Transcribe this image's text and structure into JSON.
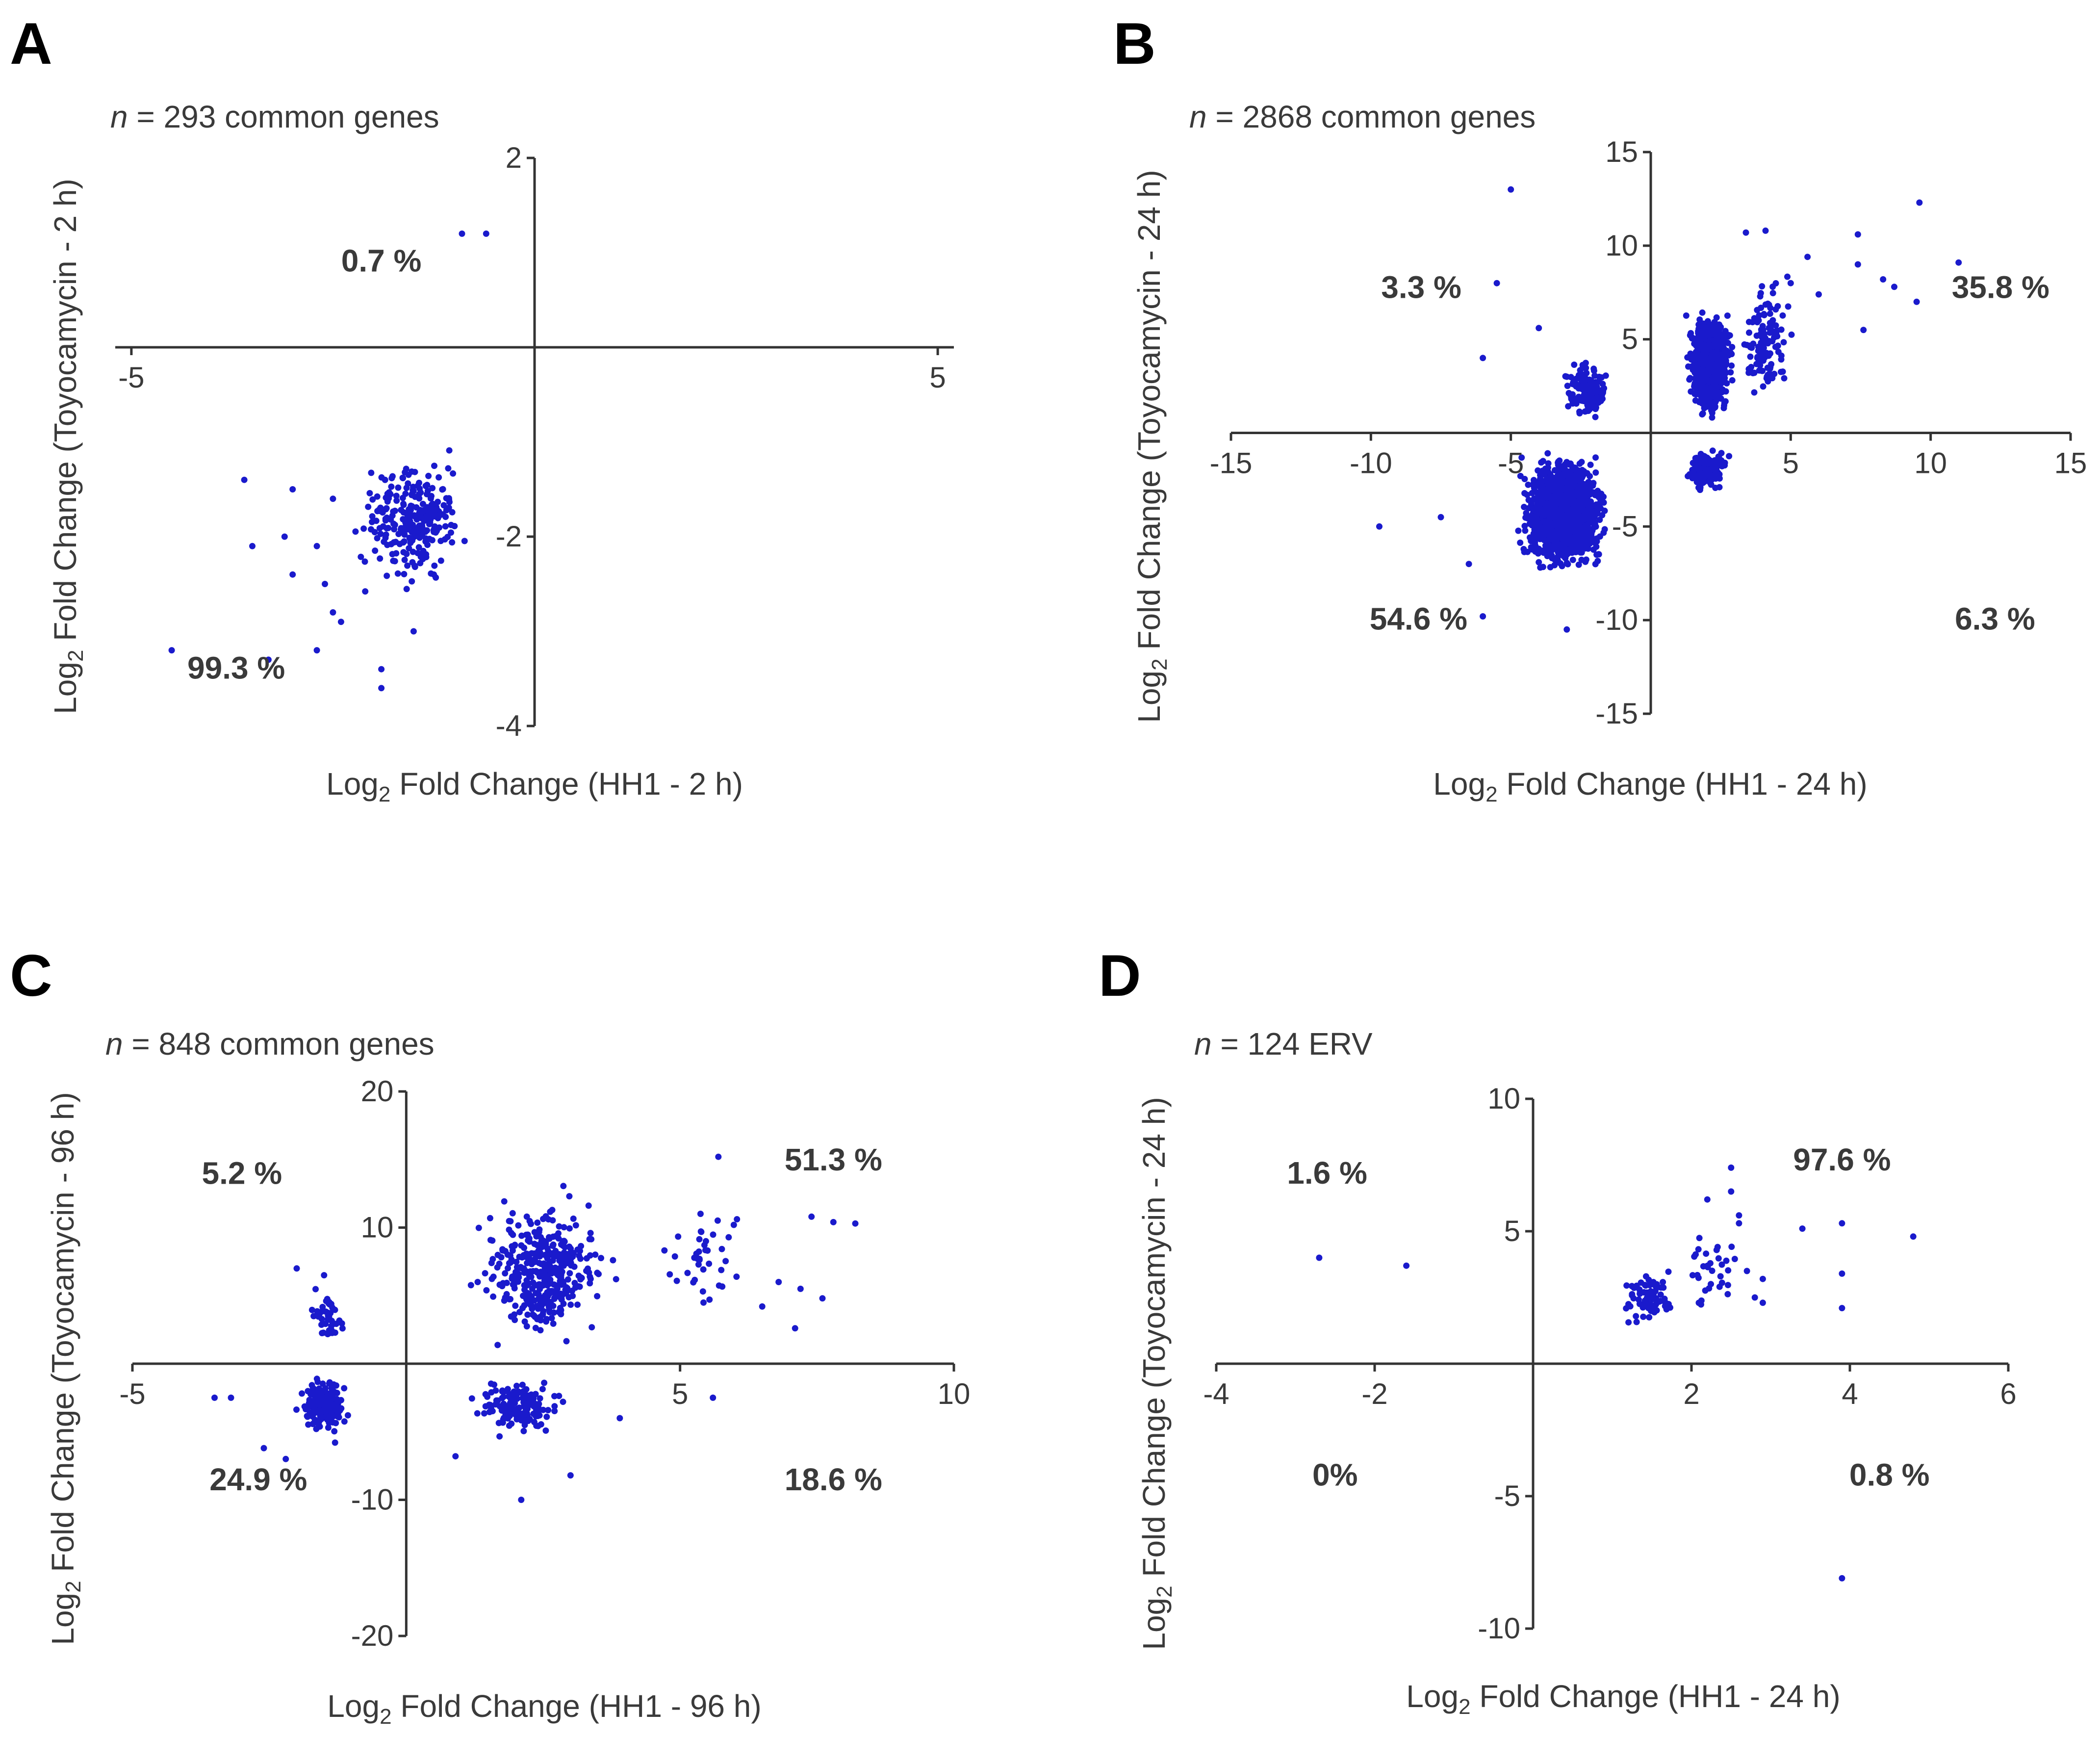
{
  "chart_data": [
    {
      "type": "scatter",
      "panel_letter": "A",
      "subtitle_n": "n",
      "subtitle_text": " = 293 common genes",
      "xlabel_pre": "Log",
      "xlabel_sub": "2",
      "xlabel_post": " Fold Change (HH1 - 2 h)",
      "ylabel_pre": "Log",
      "ylabel_sub": "2",
      "ylabel_post": " Fold Change (Toyocamycin - 2 h)",
      "xlim": [
        -5.2,
        5.2
      ],
      "ylim": [
        -4,
        2
      ],
      "x_ticks": [
        {
          "value": -5,
          "label": "-5"
        },
        {
          "value": 5,
          "label": "5"
        }
      ],
      "y_ticks": [
        {
          "value": 2,
          "label": "2"
        },
        {
          "value": -2,
          "label": "-2"
        },
        {
          "value": -4,
          "label": "-4"
        }
      ],
      "quadrant_labels": [
        {
          "text": "0.7 %",
          "x": -1.9,
          "y": 0.8
        },
        {
          "text": "99.3 %",
          "x": -3.7,
          "y": -3.5
        }
      ],
      "marker_color": "#1a1acc",
      "points": [
        [
          -0.9,
          1.2
        ],
        [
          -0.6,
          1.2
        ],
        [
          -4.5,
          -3.2
        ],
        [
          -3.3,
          -3.3
        ],
        [
          -1.9,
          -3.4
        ],
        [
          -1.9,
          -3.6
        ],
        [
          -3.6,
          -1.4
        ],
        [
          -3.5,
          -2.1
        ],
        [
          -3.1,
          -2.0
        ],
        [
          -2.7,
          -2.1
        ],
        [
          -3.0,
          -2.4
        ],
        [
          -2.6,
          -2.5
        ],
        [
          -2.5,
          -2.8
        ],
        [
          -2.4,
          -2.9
        ],
        [
          -2.7,
          -3.2
        ],
        [
          -1.5,
          -3.0
        ],
        [
          -2.5,
          -1.6
        ],
        [
          -3.0,
          -1.5
        ]
      ],
      "cluster": {
        "count": 275,
        "x": [
          -2.6,
          -0.7
        ],
        "y": [
          -2.9,
          -1.0
        ],
        "bias_x": -0.9,
        "bias_y": -1.25,
        "seed": 11
      }
    },
    {
      "type": "scatter",
      "panel_letter": "B",
      "subtitle_n": "n",
      "subtitle_text": " = 2868 common genes",
      "xlabel_pre": "Log",
      "xlabel_sub": "2",
      "xlabel_post": " Fold Change (HH1 - 24 h)",
      "ylabel_pre": "Log",
      "ylabel_sub": "2",
      "ylabel_post": " Fold Change (Toyocamycin - 24 h)",
      "xlim": [
        -15,
        15
      ],
      "ylim": [
        -15,
        15
      ],
      "x_ticks": [
        {
          "value": -15,
          "label": "-15"
        },
        {
          "value": -10,
          "label": "-10"
        },
        {
          "value": -5,
          "label": "-5"
        },
        {
          "value": 5,
          "label": "5"
        },
        {
          "value": 10,
          "label": "10"
        },
        {
          "value": 15,
          "label": "15"
        }
      ],
      "y_ticks": [
        {
          "value": 15,
          "label": "15"
        },
        {
          "value": 10,
          "label": "10"
        },
        {
          "value": 5,
          "label": "5"
        },
        {
          "value": -5,
          "label": "-5"
        },
        {
          "value": -10,
          "label": "-10"
        },
        {
          "value": -15,
          "label": "-15"
        }
      ],
      "quadrant_labels": [
        {
          "text": "3.3 %",
          "x": -8.2,
          "y": 7.2
        },
        {
          "text": "35.8 %",
          "x": 12.5,
          "y": 7.2
        },
        {
          "text": "54.6 %",
          "x": -8.3,
          "y": -10.5
        },
        {
          "text": "6.3 %",
          "x": 12.3,
          "y": -10.5
        }
      ],
      "marker_color": "#1a1acc",
      "points": [
        [
          -5,
          13
        ],
        [
          -5.5,
          8
        ],
        [
          -9.7,
          -5
        ],
        [
          -7.5,
          -4.5
        ],
        [
          -6,
          -9.8
        ],
        [
          -3,
          -10.5
        ],
        [
          -6.5,
          -7
        ],
        [
          9.6,
          12.3
        ],
        [
          11,
          9.1
        ],
        [
          7.4,
          10.6
        ],
        [
          7.4,
          9
        ],
        [
          8.3,
          8.2
        ],
        [
          8.7,
          7.8
        ],
        [
          9.5,
          7
        ],
        [
          7.6,
          5.5
        ],
        [
          6,
          7.4
        ],
        [
          5,
          8
        ],
        [
          4.1,
          10.8
        ],
        [
          3.4,
          10.7
        ],
        [
          5.6,
          9.4
        ],
        [
          -6,
          4
        ],
        [
          -4,
          5.6
        ],
        [
          -3,
          3
        ]
      ],
      "clusters": [
        {
          "count": 160,
          "x": [
            -3.5,
            -1.3
          ],
          "y": [
            0.4,
            4.5
          ],
          "bias_x": -1.6,
          "bias_y": 1.5,
          "seed": 21
        },
        {
          "count": 1030,
          "x": [
            1.1,
            3.2
          ],
          "y": [
            0.3,
            7.5
          ],
          "bias_x": 2.0,
          "bias_y": 3.0,
          "seed": 22
        },
        {
          "count": 120,
          "x": [
            3.0,
            5.5
          ],
          "y": [
            0.5,
            10
          ],
          "bias_x": 3.5,
          "bias_y": 3.5,
          "seed": 23
        },
        {
          "count": 1566,
          "x": [
            -5.2,
            -1.3
          ],
          "y": [
            -8.5,
            -0.5
          ],
          "bias_x": -2.5,
          "bias_y": -2.8,
          "seed": 24
        },
        {
          "count": 181,
          "x": [
            1.1,
            3.0
          ],
          "y": [
            -3.5,
            -0.5
          ],
          "bias_x": 1.7,
          "bias_y": -1.5,
          "seed": 25
        }
      ]
    },
    {
      "type": "scatter",
      "panel_letter": "C",
      "subtitle_n": "n",
      "subtitle_text": " = 848 common genes",
      "xlabel_pre": "Log",
      "xlabel_sub": "2",
      "xlabel_post": " Fold Change (HH1 - 96 h)",
      "ylabel_pre": "Log",
      "ylabel_sub": "2",
      "ylabel_post": " Fold Change (Toyocamycin - 96 h)",
      "xlim": [
        -5,
        10
      ],
      "ylim": [
        -20,
        20
      ],
      "x_ticks": [
        {
          "value": -5,
          "label": "-5"
        },
        {
          "value": 5,
          "label": "5"
        },
        {
          "value": 10,
          "label": "10"
        }
      ],
      "y_ticks": [
        {
          "value": 20,
          "label": "20"
        },
        {
          "value": 10,
          "label": "10"
        },
        {
          "value": -10,
          "label": "-10"
        },
        {
          "value": -20,
          "label": "-20"
        }
      ],
      "quadrant_labels": [
        {
          "text": "5.2 %",
          "x": -3.0,
          "y": 13.2
        },
        {
          "text": "51.3 %",
          "x": 7.8,
          "y": 14.2
        },
        {
          "text": "24.9 %",
          "x": -2.7,
          "y": -9.3
        },
        {
          "text": "18.6 %",
          "x": 7.8,
          "y": -9.3
        }
      ],
      "marker_color": "#1a1acc",
      "points": [
        [
          -3.2,
          -2.5
        ],
        [
          -3.5,
          -2.5
        ],
        [
          -2.6,
          -6.2
        ],
        [
          -2.2,
          -7
        ],
        [
          -1.3,
          -5.8
        ],
        [
          2.1,
          -10
        ],
        [
          3.0,
          -8.2
        ],
        [
          3.9,
          -4
        ],
        [
          5.6,
          -2.5
        ],
        [
          5.7,
          15.2
        ],
        [
          7.4,
          10.8
        ],
        [
          7.8,
          10.4
        ],
        [
          8.2,
          10.3
        ],
        [
          7.6,
          4.8
        ],
        [
          7.2,
          5.5
        ],
        [
          6.8,
          6
        ],
        [
          7.1,
          2.6
        ],
        [
          6.5,
          4.2
        ],
        [
          -2.0,
          7.0
        ],
        [
          -1.5,
          6.5
        ],
        [
          0.9,
          -6.8
        ]
      ],
      "clusters": [
        {
          "count": 43,
          "x": [
            -1.9,
            -1.0
          ],
          "y": [
            0.5,
            6.5
          ],
          "bias_x": -1.4,
          "bias_y": 2.5,
          "seed": 31
        },
        {
          "count": 205,
          "x": [
            -2.1,
            -0.9
          ],
          "y": [
            -6.0,
            -0.5
          ],
          "bias_x": -1.5,
          "bias_y": -2.5,
          "seed": 32
        },
        {
          "count": 400,
          "x": [
            1.0,
            4.2
          ],
          "y": [
            0.5,
            14
          ],
          "bias_x": 2.0,
          "bias_y": 3.5,
          "seed": 33
        },
        {
          "count": 40,
          "x": [
            4.0,
            7.0
          ],
          "y": [
            2,
            14
          ],
          "bias_x": 5.0,
          "bias_y": 7.5,
          "seed": 34
        },
        {
          "count": 155,
          "x": [
            1.0,
            3.2
          ],
          "y": [
            -6.0,
            -0.5
          ],
          "bias_x": 1.6,
          "bias_y": -2.5,
          "seed": 35
        }
      ]
    },
    {
      "type": "scatter",
      "panel_letter": "D",
      "subtitle_n": "n",
      "subtitle_text": " = 124 ERV",
      "xlabel_pre": "Log",
      "xlabel_sub": "2",
      "xlabel_post": " Fold Change (HH1 - 24 h)",
      "ylabel_pre": "Log",
      "ylabel_sub": "2",
      "ylabel_post": " Fold Change (Toyocamycin - 24 h)",
      "xlim": [
        -4,
        6
      ],
      "ylim": [
        -10,
        10
      ],
      "x_ticks": [
        {
          "value": -4,
          "label": "-4"
        },
        {
          "value": -2,
          "label": "-2"
        },
        {
          "value": 2,
          "label": "2"
        },
        {
          "value": 4,
          "label": "4"
        },
        {
          "value": 6,
          "label": "6"
        }
      ],
      "y_ticks": [
        {
          "value": 10,
          "label": "10"
        },
        {
          "value": 5,
          "label": "5"
        },
        {
          "value": -5,
          "label": "-5"
        },
        {
          "value": -10,
          "label": "-10"
        }
      ],
      "quadrant_labels": [
        {
          "text": "1.6 %",
          "x": -2.6,
          "y": 6.8
        },
        {
          "text": "97.6 %",
          "x": 3.9,
          "y": 7.3
        },
        {
          "text": "0%",
          "x": -2.5,
          "y": -4.6
        },
        {
          "text": "0.8 %",
          "x": 4.5,
          "y": -4.6
        }
      ],
      "marker_color": "#1a1acc",
      "points": [
        [
          -2.7,
          4.0
        ],
        [
          -1.6,
          3.7
        ],
        [
          3.9,
          -8.1
        ],
        [
          4.8,
          4.8
        ],
        [
          3.9,
          5.3
        ],
        [
          3.9,
          3.4
        ],
        [
          3.9,
          2.1
        ],
        [
          3.4,
          5.1
        ],
        [
          2.5,
          7.4
        ],
        [
          2.5,
          6.5
        ],
        [
          2.6,
          5.6
        ],
        [
          2.6,
          5.3
        ],
        [
          2.2,
          6.2
        ],
        [
          2.7,
          3.5
        ],
        [
          2.9,
          3.2
        ],
        [
          2.8,
          2.5
        ],
        [
          2.9,
          2.3
        ]
      ],
      "clusters": [
        {
          "count": 75,
          "x": [
            1.0,
            2.0
          ],
          "y": [
            1.0,
            4.2
          ],
          "bias_x": 1.3,
          "bias_y": 2.0,
          "seed": 41
        },
        {
          "count": 32,
          "x": [
            1.8,
            2.8
          ],
          "y": [
            1.2,
            5.5
          ],
          "bias_x": 2.2,
          "bias_y": 3.0,
          "seed": 42
        }
      ]
    }
  ]
}
